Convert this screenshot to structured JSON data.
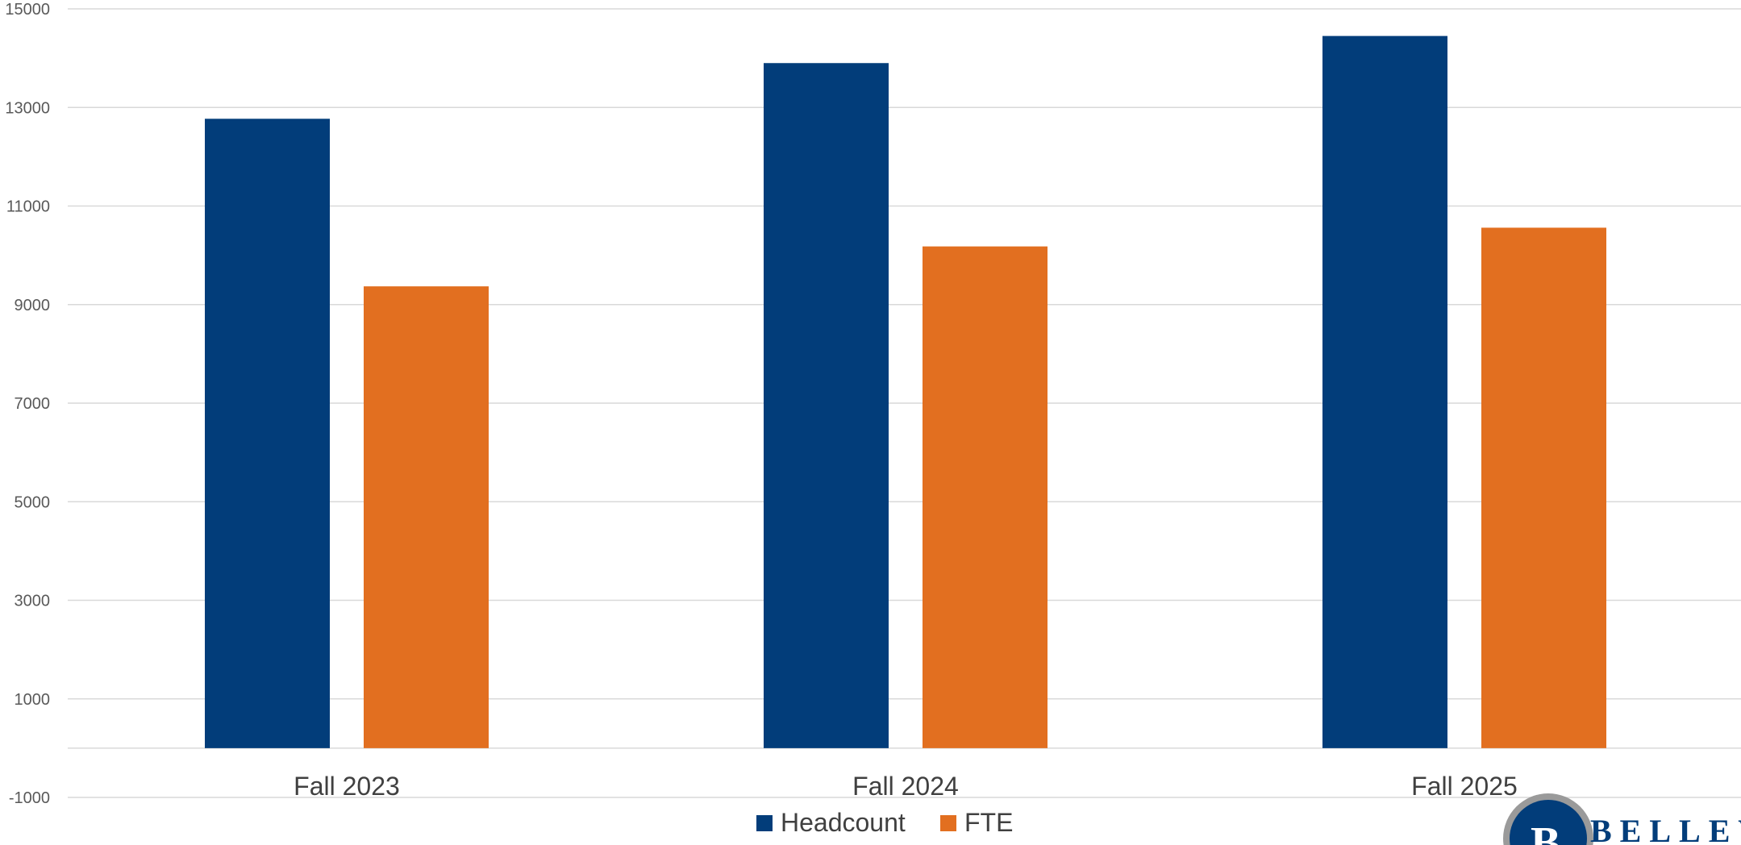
{
  "chart_data": {
    "type": "bar",
    "categories": [
      "Fall 2023",
      "Fall 2024",
      "Fall 2025"
    ],
    "series": [
      {
        "name": "Headcount",
        "values": [
          12770,
          13900,
          14450
        ],
        "color": "#023D7A"
      },
      {
        "name": "FTE",
        "values": [
          9370,
          10180,
          10560
        ],
        "color": "#E26F20"
      }
    ],
    "ylim": [
      -1000,
      15000
    ],
    "yticks": [
      15000,
      13000,
      11000,
      9000,
      7000,
      5000,
      3000,
      1000,
      -1000
    ],
    "grid": true,
    "legend": "bottom-center",
    "title": "",
    "xlabel": "",
    "ylabel": ""
  },
  "logo": {
    "text": "BELLEV",
    "color": "#023D7A",
    "icon": "bellevue-college-b-icon"
  }
}
